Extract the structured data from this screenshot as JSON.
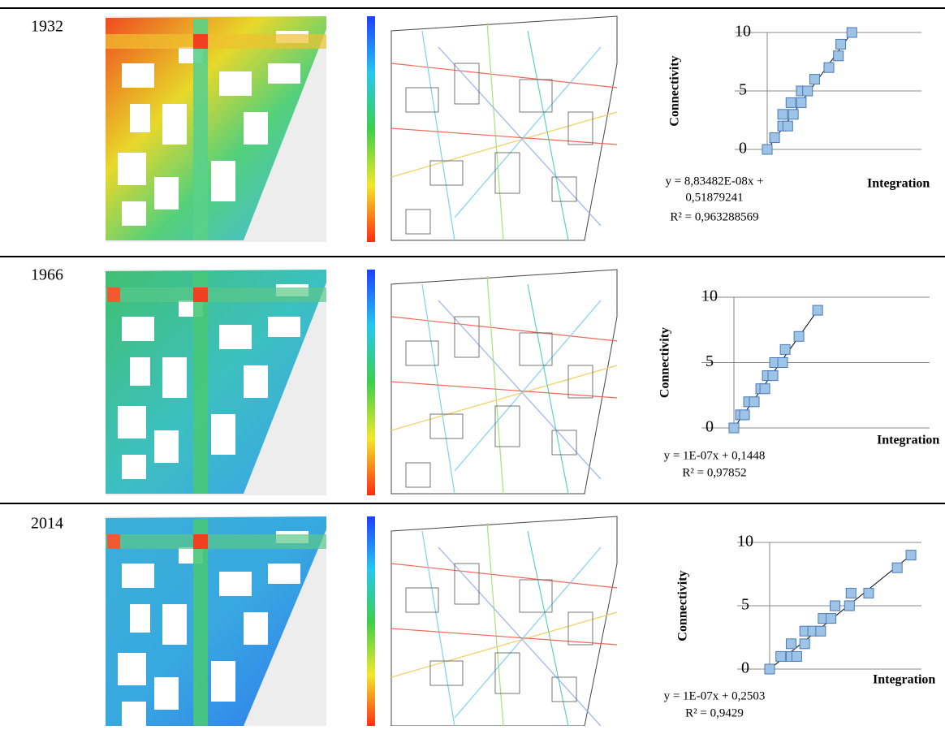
{
  "years": [
    "1932",
    "1966",
    "2014"
  ],
  "chart_data": [
    {
      "type": "scatter",
      "x_label": "Integration",
      "y_label": "Connectivity",
      "annotations": [
        "y = 8,83482E-08x +",
        "0,51879241",
        "R² = 0,963288569"
      ],
      "color": "#9dc3e6",
      "x": [
        0,
        9300000,
        19600000,
        26000000,
        19600000,
        33000000,
        30000000,
        43000000,
        43000000,
        51000000,
        60000000,
        78000000,
        90000000,
        93000000,
        107000000
      ],
      "values": [
        0,
        1,
        2,
        2,
        3,
        3,
        4,
        4,
        5,
        5,
        6,
        7,
        8,
        9,
        10
      ],
      "xlim": [
        0,
        195000000
      ],
      "ylim": [
        0,
        10
      ],
      "yticks": [
        0,
        5,
        10
      ],
      "grid": true
    },
    {
      "type": "scatter",
      "x_label": "Integration",
      "y_label": "Connectivity",
      "annotations": [
        "y = 1E-07x + 0,1448",
        "R² = 0,97852"
      ],
      "color": "#9dc3e6",
      "x": [
        0,
        6900000,
        11200000,
        15500000,
        21500000,
        28400000,
        32700000,
        35300000,
        41300000,
        43000000,
        51600000,
        54200000,
        68800000,
        88600000
      ],
      "values": [
        0,
        1,
        1,
        2,
        2,
        3,
        3,
        4,
        4,
        5,
        5,
        6,
        7,
        9
      ],
      "xlim": [
        0,
        207000000
      ],
      "ylim": [
        0,
        10
      ],
      "yticks": [
        0,
        5,
        10
      ],
      "grid": true
    },
    {
      "type": "scatter",
      "x_label": "Integration",
      "y_label": "Connectivity",
      "annotations": [
        "y = 1E-07x + 0,2503",
        "R² = 0,9429"
      ],
      "color": "#9dc3e6",
      "x": [
        0,
        6900000,
        13300000,
        16800000,
        13300000,
        21700000,
        21700000,
        26700000,
        31600000,
        33100000,
        38000000,
        40500000,
        49400000,
        50400000,
        61300000,
        79000000,
        87500000
      ],
      "values": [
        0,
        1,
        1,
        1,
        2,
        2,
        3,
        3,
        3,
        4,
        4,
        5,
        5,
        6,
        6,
        8,
        9
      ],
      "xlim": [
        0,
        94000000
      ],
      "ylim": [
        0,
        10
      ],
      "yticks": [
        0,
        5,
        10
      ],
      "grid": true
    }
  ]
}
